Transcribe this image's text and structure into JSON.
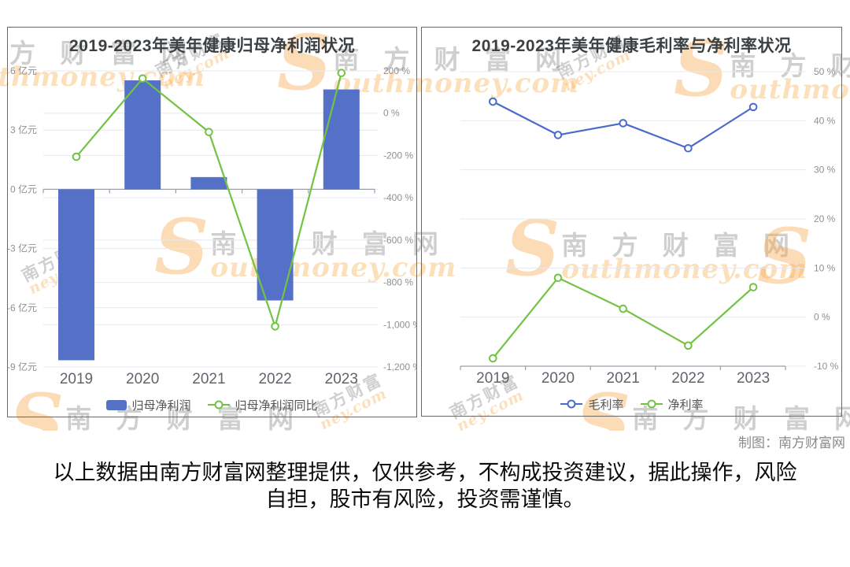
{
  "page": {
    "credit": "制图：南方财富网",
    "disclaimer": "以上数据由南方财富网整理提供，仅供参考，不构成投资建议，据此操作，风险自担，股市有风险，投资需谨慎。"
  },
  "watermark": {
    "s": "S",
    "cjk": "南 方 财 富 网",
    "latin": "outhmoney.com",
    "cjk_small": "南方财富",
    "latin_small": "ney.com"
  },
  "colors": {
    "bar_blue": "#5571c7",
    "line_blue": "#4a6cc9",
    "line_green": "#72c244",
    "gridline": "#e4e8f1",
    "axis": "#9aa0a6",
    "tick_label": "#909090",
    "year_label": "#60646b"
  },
  "chart_data": [
    {
      "type": "bar",
      "subtype": "bar-line-combo",
      "title": "2019-2023年美年健康归母净利润状况",
      "categories": [
        "2019",
        "2020",
        "2021",
        "2022",
        "2023"
      ],
      "series": [
        {
          "name": "归母净利润",
          "type": "bar",
          "axis": "left",
          "unit": "亿元",
          "color": "#5571c7",
          "values": [
            -8.66,
            5.52,
            0.62,
            -5.63,
            5.06
          ]
        },
        {
          "name": "归母净利润同比",
          "type": "line",
          "axis": "right",
          "unit": "%",
          "color": "#72c244",
          "values": [
            -206,
            164,
            -89,
            -1008,
            190
          ]
        }
      ],
      "left_axis": {
        "min": -9,
        "max": 6,
        "unit": "亿元",
        "ticks": [
          {
            "label": "6 亿元",
            "value": 6
          },
          {
            "label": "3 亿元",
            "value": 3
          },
          {
            "label": "0 亿元",
            "value": 0
          },
          {
            "label": "-3 亿元",
            "value": -3
          },
          {
            "label": "-6 亿元",
            "value": -6
          },
          {
            "label": "-9 亿元",
            "value": -9
          }
        ]
      },
      "right_axis": {
        "min": -1200,
        "max": 200,
        "unit": "%",
        "ticks": [
          {
            "label": "200 %",
            "value": 200
          },
          {
            "label": "0 %",
            "value": 0
          },
          {
            "label": "-200 %",
            "value": -200
          },
          {
            "label": "-400 %",
            "value": -400
          },
          {
            "label": "-600 %",
            "value": -600
          },
          {
            "label": "-800 %",
            "value": -800
          },
          {
            "label": "-1,000 %",
            "value": -1000
          },
          {
            "label": "-1,200 %",
            "value": -1200
          }
        ]
      },
      "grid": true,
      "legend_position": "bottom",
      "legend": [
        "归母净利润",
        "归母净利润同比"
      ]
    },
    {
      "type": "line",
      "title": "2019-2023年美年健康毛利率与净利率状况",
      "categories": [
        "2019",
        "2020",
        "2021",
        "2022",
        "2023"
      ],
      "series": [
        {
          "name": "毛利率",
          "type": "line",
          "unit": "%",
          "color": "#4a6cc9",
          "values": [
            43.9,
            37.1,
            39.5,
            34.4,
            42.8
          ]
        },
        {
          "name": "净利率",
          "type": "line",
          "unit": "%",
          "color": "#72c244",
          "values": [
            -8.4,
            8.0,
            1.7,
            -5.8,
            6.1
          ]
        }
      ],
      "right_axis": {
        "min": -10,
        "max": 50,
        "unit": "%",
        "ticks": [
          {
            "label": "50 %",
            "value": 50
          },
          {
            "label": "40 %",
            "value": 40
          },
          {
            "label": "30 %",
            "value": 30
          },
          {
            "label": "20 %",
            "value": 20
          },
          {
            "label": "10 %",
            "value": 10
          },
          {
            "label": "0 %",
            "value": 0
          },
          {
            "label": "-10 %",
            "value": -10
          }
        ]
      },
      "grid": true,
      "legend_position": "bottom",
      "legend": [
        "毛利率",
        "净利率"
      ]
    }
  ]
}
